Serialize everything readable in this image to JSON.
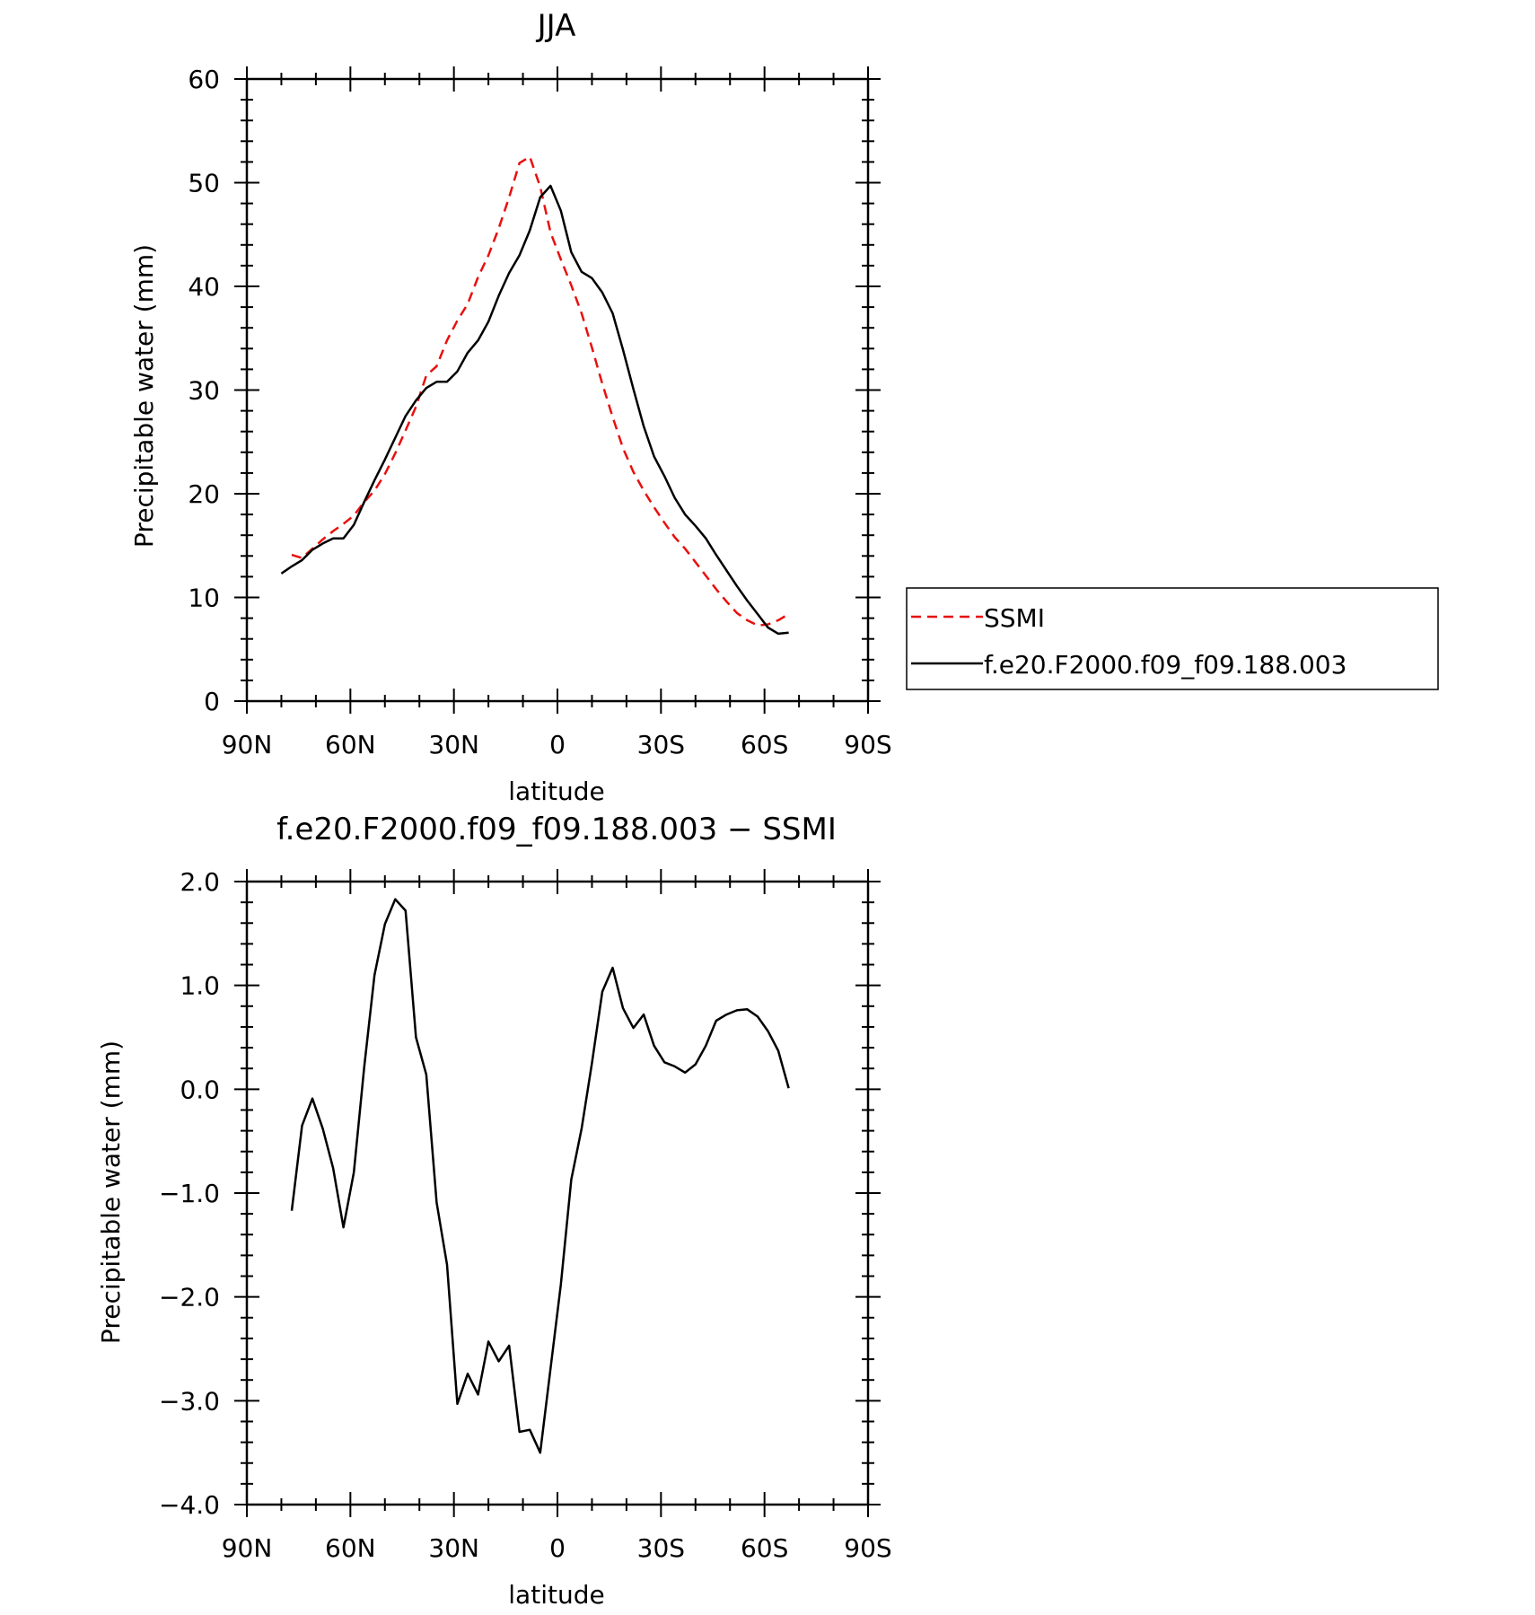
{
  "chart_data": [
    {
      "type": "line",
      "title": "JJA",
      "xlabel": "latitude",
      "ylabel": "Precipitable water (mm)",
      "xlim": [
        90,
        -90
      ],
      "ylim": [
        0,
        60
      ],
      "xticks": [
        90,
        60,
        30,
        0,
        -30,
        -60,
        -90
      ],
      "xtick_labels": [
        "90N",
        "60N",
        "30N",
        "0",
        "30S",
        "60S",
        "90S"
      ],
      "yticks": [
        0,
        10,
        20,
        30,
        40,
        50,
        60
      ],
      "ytick_labels": [
        "0",
        "10",
        "20",
        "30",
        "40",
        "50",
        "60"
      ],
      "legend": {
        "placement": "right"
      },
      "series": [
        {
          "name": "SSMI",
          "color": "#e8100e",
          "style": "dashed",
          "x": [
            77,
            74,
            71,
            68,
            65,
            62,
            59,
            56,
            53,
            50,
            47,
            44,
            41,
            38,
            35,
            32,
            29,
            26,
            23,
            20,
            17,
            14,
            11,
            8,
            5,
            2,
            -1,
            -4,
            -7,
            -10,
            -13,
            -16,
            -19,
            -22,
            -25,
            -28,
            -31,
            -34,
            -37,
            -40,
            -43,
            -46,
            -49,
            -52,
            -55,
            -58,
            -61,
            -64,
            -67
          ],
          "y": [
            14.1,
            13.8,
            14.7,
            15.6,
            16.4,
            17.1,
            17.9,
            19.2,
            20.3,
            21.9,
            23.9,
            26.1,
            28.4,
            31.4,
            32.3,
            34.8,
            36.7,
            38.3,
            40.9,
            43.0,
            45.6,
            48.6,
            51.9,
            52.5,
            49.6,
            45.2,
            42.6,
            40.1,
            37.4,
            34.1,
            30.6,
            27.4,
            24.4,
            22.1,
            20.3,
            18.7,
            17.2,
            15.8,
            14.7,
            13.4,
            12.1,
            10.8,
            9.6,
            8.5,
            7.8,
            7.3,
            7.4,
            7.8,
            8.4
          ]
        },
        {
          "name": "f.e20.F2000.f09_f09.188.003",
          "color": "#000000",
          "style": "solid",
          "x": [
            80,
            77,
            74,
            71,
            68,
            65,
            62,
            59,
            56,
            53,
            50,
            47,
            44,
            41,
            38,
            35,
            32,
            29,
            26,
            23,
            20,
            17,
            14,
            11,
            8,
            5,
            2,
            -1,
            -4,
            -7,
            -10,
            -13,
            -16,
            -19,
            -22,
            -25,
            -28,
            -31,
            -34,
            -37,
            -40,
            -43,
            -46,
            -49,
            -52,
            -55,
            -58,
            -61,
            -64,
            -67
          ],
          "y": [
            12.3,
            13.0,
            13.6,
            14.6,
            15.2,
            15.7,
            15.7,
            17.0,
            19.2,
            21.3,
            23.3,
            25.4,
            27.5,
            29.0,
            30.2,
            30.8,
            30.8,
            31.8,
            33.6,
            34.8,
            36.6,
            39.1,
            41.3,
            43.0,
            45.4,
            48.6,
            49.7,
            47.3,
            43.3,
            41.4,
            40.8,
            39.4,
            37.4,
            33.9,
            30.1,
            26.5,
            23.6,
            21.7,
            19.6,
            18.0,
            16.9,
            15.7,
            14.1,
            12.6,
            11.1,
            9.7,
            8.4,
            7.1,
            6.5,
            6.6
          ]
        }
      ]
    },
    {
      "type": "line",
      "title": "f.e20.F2000.f09_f09.188.003 − SSMI",
      "xlabel": "latitude",
      "ylabel": "Precipitable water (mm)",
      "xlim": [
        90,
        -90
      ],
      "ylim": [
        -4.0,
        2.0
      ],
      "xticks": [
        90,
        60,
        30,
        0,
        -30,
        -60,
        -90
      ],
      "xtick_labels": [
        "90N",
        "60N",
        "30N",
        "0",
        "30S",
        "60S",
        "90S"
      ],
      "yticks": [
        2.0,
        1.0,
        0.0,
        -1.0,
        -2.0,
        -3.0,
        -4.0
      ],
      "ytick_labels": [
        "2.0",
        "1.0",
        "0.0",
        "−1.0",
        "−2.0",
        "−3.0",
        "−4.0"
      ],
      "series": [
        {
          "color": "#000000",
          "style": "solid",
          "x": [
            77,
            74,
            71,
            68,
            65,
            62,
            59,
            56,
            53,
            50,
            47,
            44,
            41,
            38,
            35,
            32,
            29,
            26,
            23,
            20,
            17,
            14,
            11,
            8,
            5,
            2,
            -1,
            -4,
            -7,
            -10,
            -13,
            -16,
            -19,
            -22,
            -25,
            -28,
            -31,
            -34,
            -37,
            -40,
            -43,
            -46,
            -49,
            -52,
            -55,
            -58,
            -61,
            -64,
            -67
          ],
          "y": [
            -1.17,
            -0.35,
            -0.09,
            -0.38,
            -0.76,
            -1.33,
            -0.8,
            0.21,
            1.1,
            1.59,
            1.83,
            1.72,
            0.5,
            0.14,
            -1.09,
            -1.69,
            -3.03,
            -2.74,
            -2.94,
            -2.43,
            -2.62,
            -2.47,
            -3.3,
            -3.28,
            -3.5,
            -2.69,
            -1.88,
            -0.87,
            -0.38,
            0.25,
            0.94,
            1.17,
            0.78,
            0.59,
            0.72,
            0.42,
            0.26,
            0.22,
            0.16,
            0.24,
            0.42,
            0.66,
            0.72,
            0.76,
            0.77,
            0.7,
            0.56,
            0.37,
            0.01
          ]
        }
      ]
    }
  ]
}
